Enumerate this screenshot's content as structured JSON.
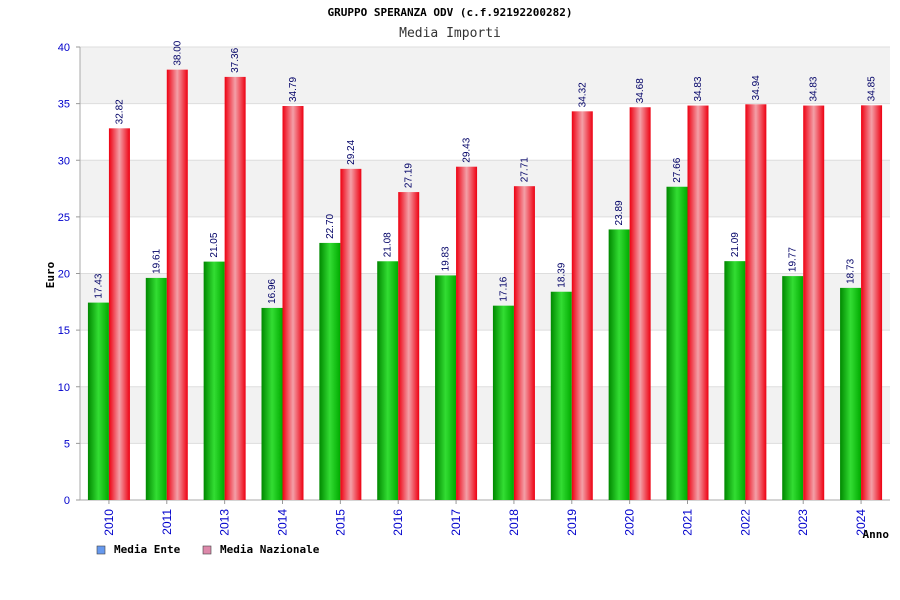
{
  "chart_data": {
    "type": "bar",
    "title": "GRUPPO SPERANZA ODV (c.f.92192200282)",
    "subtitle": "Media Importi",
    "xlabel": "Anno",
    "ylabel": "Euro",
    "ylim": [
      0,
      40
    ],
    "yticks": [
      0,
      5,
      10,
      15,
      20,
      25,
      30,
      35,
      40
    ],
    "grid": true,
    "legend_position": "bottom-left",
    "categories": [
      "2010",
      "2011",
      "2013",
      "2014",
      "2015",
      "2016",
      "2017",
      "2018",
      "2019",
      "2020",
      "2021",
      "2022",
      "2023",
      "2024"
    ],
    "series": [
      {
        "name": "Media Ente",
        "bar_color": "#00b000",
        "legend_color": "#6699ee",
        "values": [
          17.43,
          19.61,
          21.05,
          16.96,
          22.7,
          21.08,
          19.83,
          17.16,
          18.39,
          23.89,
          27.66,
          21.09,
          19.77,
          18.73
        ],
        "labels": [
          "17.43",
          "19.61",
          "21.05",
          "16.96",
          "22.70",
          "21.08",
          "19.83",
          "17.16",
          "18.39",
          "23.89",
          "27.66",
          "21.09",
          "19.77",
          "18.73"
        ]
      },
      {
        "name": "Media Nazionale",
        "bar_color": "#ee1122",
        "legend_color": "#dd88aa",
        "values": [
          32.82,
          38.0,
          37.36,
          34.79,
          29.24,
          27.19,
          29.43,
          27.71,
          34.32,
          34.68,
          34.83,
          34.94,
          34.83,
          34.85
        ],
        "labels": [
          "32.82",
          "38.00",
          "37.36",
          "34.79",
          "29.24",
          "27.19",
          "29.43",
          "27.71",
          "34.32",
          "34.68",
          "34.83",
          "34.94",
          "34.83",
          "34.85"
        ]
      }
    ]
  }
}
